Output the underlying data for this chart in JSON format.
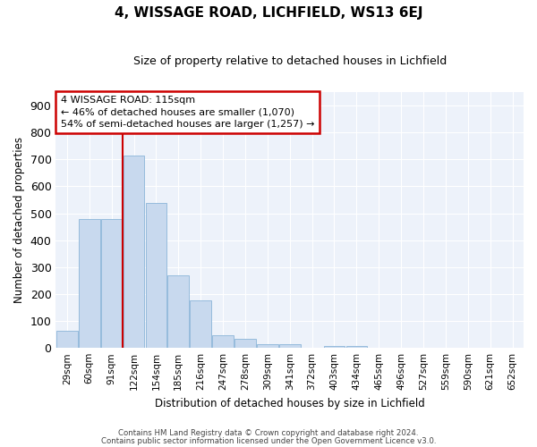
{
  "title": "4, WISSAGE ROAD, LICHFIELD, WS13 6EJ",
  "subtitle": "Size of property relative to detached houses in Lichfield",
  "xlabel": "Distribution of detached houses by size in Lichfield",
  "ylabel": "Number of detached properties",
  "categories": [
    "29sqm",
    "60sqm",
    "91sqm",
    "122sqm",
    "154sqm",
    "185sqm",
    "216sqm",
    "247sqm",
    "278sqm",
    "309sqm",
    "341sqm",
    "372sqm",
    "403sqm",
    "434sqm",
    "465sqm",
    "496sqm",
    "527sqm",
    "559sqm",
    "590sqm",
    "621sqm",
    "652sqm"
  ],
  "values": [
    63,
    480,
    480,
    715,
    540,
    270,
    175,
    47,
    33,
    15,
    13,
    0,
    8,
    8,
    0,
    0,
    0,
    0,
    0,
    0,
    0
  ],
  "bar_color": "#c8d9ee",
  "bar_edge_color": "#8ab4d8",
  "background_color": "#edf2fa",
  "grid_color": "#ffffff",
  "vline_x": 2.5,
  "vline_label": "4 WISSAGE ROAD: 115sqm",
  "annotation_line1": "← 46% of detached houses are smaller (1,070)",
  "annotation_line2": "54% of semi-detached houses are larger (1,257) →",
  "annotation_box_color": "#ffffff",
  "annotation_box_edge_color": "#cc0000",
  "vline_color": "#cc0000",
  "ylim": [
    0,
    950
  ],
  "yticks": [
    0,
    100,
    200,
    300,
    400,
    500,
    600,
    700,
    800,
    900
  ],
  "footer_line1": "Contains HM Land Registry data © Crown copyright and database right 2024.",
  "footer_line2": "Contains public sector information licensed under the Open Government Licence v3.0."
}
